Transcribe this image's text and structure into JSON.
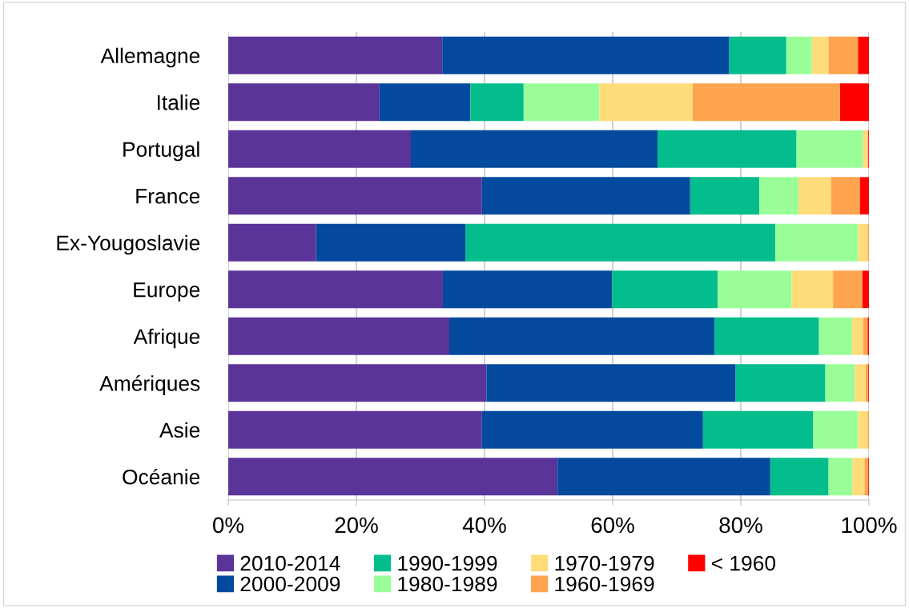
{
  "chart_data": {
    "type": "bar",
    "orientation": "horizontal",
    "stacked": true,
    "categories": [
      "Allemagne",
      "Italie",
      "Portugal",
      "France",
      "Ex-Yougoslavie",
      "Europe",
      "Afrique",
      "Amériques",
      "Asie",
      "Océanie"
    ],
    "series": [
      {
        "name": "2010-2014",
        "color": "#5b3499",
        "values": [
          33.4,
          23.6,
          28.5,
          39.6,
          13.7,
          33.5,
          34.5,
          40.3,
          39.6,
          51.4
        ]
      },
      {
        "name": "2000-2009",
        "color": "#034a9e",
        "values": [
          44.8,
          14.2,
          38.5,
          32.5,
          23.3,
          26.4,
          41.4,
          38.9,
          34.5,
          33.2
        ]
      },
      {
        "name": "1990-1999",
        "color": "#03bd8c",
        "values": [
          8.9,
          8.3,
          21.7,
          10.8,
          48.4,
          16.5,
          16.3,
          14.0,
          17.2,
          9.1
        ]
      },
      {
        "name": "1980-1989",
        "color": "#9afe98",
        "values": [
          4.0,
          11.8,
          10.4,
          6.1,
          12.9,
          11.5,
          5.2,
          4.6,
          7.0,
          3.7
        ]
      },
      {
        "name": "1970-1979",
        "color": "#fedc7a",
        "values": [
          2.6,
          14.6,
          0.7,
          5.1,
          1.5,
          6.5,
          1.7,
          1.7,
          1.5,
          1.9
        ]
      },
      {
        "name": "1960-1969",
        "color": "#fea44e",
        "values": [
          4.6,
          23.0,
          0.1,
          4.5,
          0.2,
          4.6,
          0.7,
          0.4,
          0.2,
          0.6
        ]
      },
      {
        "name": "< 1960",
        "color": "#fe0000",
        "values": [
          1.7,
          4.5,
          0.1,
          1.4,
          0.0,
          1.0,
          0.2,
          0.1,
          0.0,
          0.1
        ]
      }
    ],
    "xlim": [
      0,
      100
    ],
    "xticks": [
      {
        "value": 0,
        "label": "0%"
      },
      {
        "value": 20,
        "label": "20%"
      },
      {
        "value": 40,
        "label": "40%"
      },
      {
        "value": 60,
        "label": "60%"
      },
      {
        "value": 80,
        "label": "80%"
      },
      {
        "value": 100,
        "label": "100%"
      }
    ],
    "grid": "x",
    "legend": "bottom"
  }
}
